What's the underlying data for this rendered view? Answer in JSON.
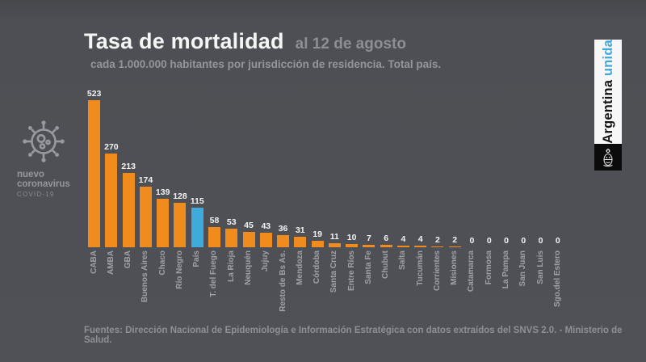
{
  "header": {
    "title": "Tasa de mortalidad",
    "date": "al 12 de agosto",
    "subtitle": "cada 1.000.000 habitantes por jurisdicción de residencia. Total país."
  },
  "covid_badge": {
    "line1": "nuevo",
    "line2": "coronavirus",
    "line3": "COVID-19",
    "virus_icon": "virus-icon"
  },
  "banner": {
    "country": "Argentina",
    "unida": "unida",
    "coat_of_arms_icon": "argentina-coat-of-arms-icon"
  },
  "footer": {
    "source": "Fuentes: Dirección Nacional de Epidemiología e Información Estratégica con datos extraídos del SNVS 2.0. - Ministerio de Salud."
  },
  "colors": {
    "background": "#4d4f54",
    "bar_orange": "#F08C1E",
    "bar_highlight_blue": "#3FABDC",
    "value_label": "#f2f2f2",
    "axis_label": "#9fa1a6",
    "banner_blue": "#3fa7dc"
  },
  "chart_data": {
    "type": "bar",
    "title": "Tasa de mortalidad al 12 de agosto",
    "subtitle": "cada 1.000.000 habitantes por jurisdicción de residencia. Total país.",
    "categories": [
      "CABA",
      "AMBA",
      "GBA",
      "Buenos Aires",
      "Chaco",
      "Río Negro",
      "País",
      "T. del Fuego",
      "La Rioja",
      "Neuquén",
      "Jujuy",
      "Resto de Bs As.",
      "Mendoza",
      "Córdoba",
      "Santa Cruz",
      "Entre Ríos",
      "Santa Fe",
      "Chubut",
      "Salta",
      "Tucumán",
      "Corrientes",
      "Misiones",
      "Catamarca",
      "Formosa",
      "La Pampa",
      "San Juan",
      "San Luis",
      "Sgo.del Estero"
    ],
    "values": [
      523,
      270,
      213,
      174,
      139,
      128,
      115,
      58,
      53,
      45,
      43,
      36,
      31,
      19,
      11,
      10,
      7,
      6,
      4,
      4,
      2,
      2,
      0,
      0,
      0,
      0,
      0,
      0
    ],
    "highlight_category": "País",
    "bar_color": "#F08C1E",
    "highlight_color": "#3FABDC",
    "value_labels_shown": true,
    "grid": false,
    "legend": false,
    "xlabel": "",
    "ylabel": "",
    "note": "y-axis not drawn; tallest bar (523) visually truncated in source graphic"
  }
}
